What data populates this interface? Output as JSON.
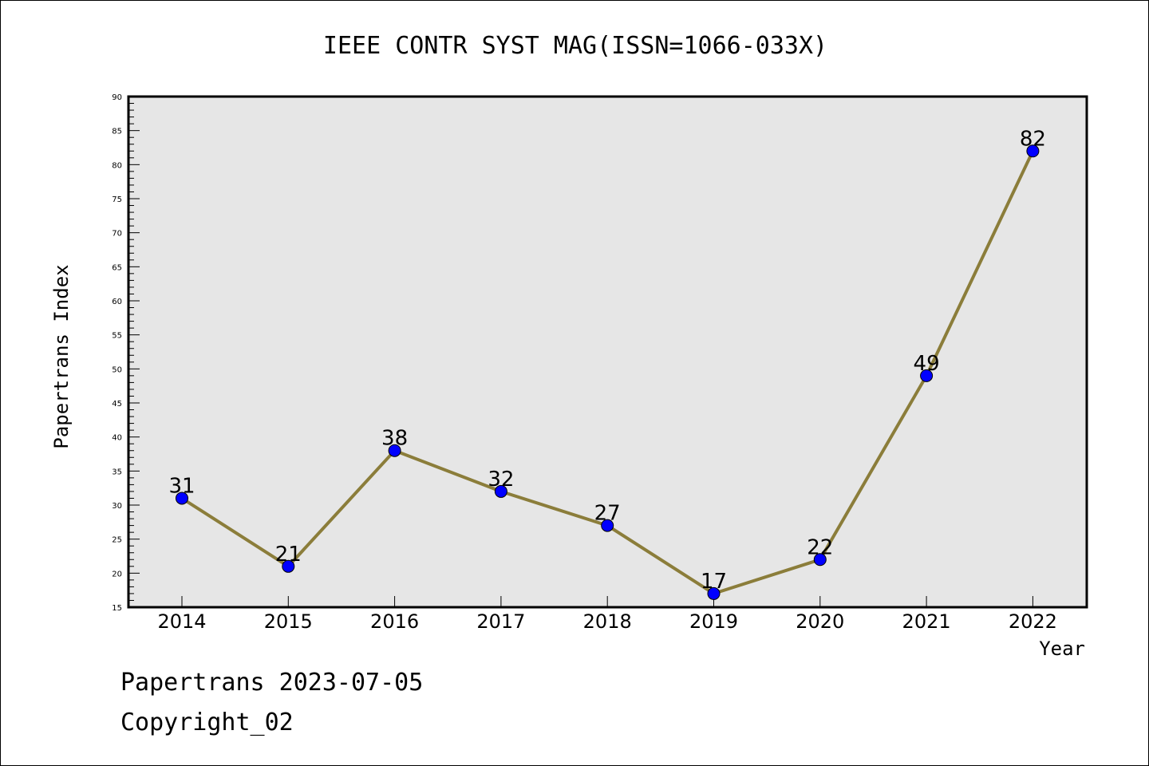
{
  "chart_data": {
    "type": "line",
    "title": "IEEE CONTR SYST MAG(ISSN=1066-033X)",
    "xlabel": "Year",
    "ylabel": "Papertrans Index",
    "categories": [
      "2014",
      "2015",
      "2016",
      "2017",
      "2018",
      "2019",
      "2020",
      "2021",
      "2022"
    ],
    "series": [
      {
        "values": [
          31,
          21,
          38,
          32,
          27,
          17,
          22,
          49,
          82
        ],
        "line_color": "#8b7d3a",
        "marker_color": "#0000ff"
      }
    ],
    "data_labels": [
      "31",
      "21",
      "38",
      "32",
      "27",
      "17",
      "22",
      "49",
      "82"
    ],
    "ylim": [
      15,
      90
    ],
    "yticks": [
      "15",
      "20",
      "25",
      "30",
      "35",
      "40",
      "45",
      "50",
      "55",
      "60",
      "65",
      "70",
      "75",
      "80",
      "85",
      "90"
    ],
    "plot_background": "#e6e6e6",
    "grid": false,
    "legend": "none"
  },
  "footer": {
    "line1": "Papertrans 2023-07-05",
    "line2": "Copyright_02"
  }
}
